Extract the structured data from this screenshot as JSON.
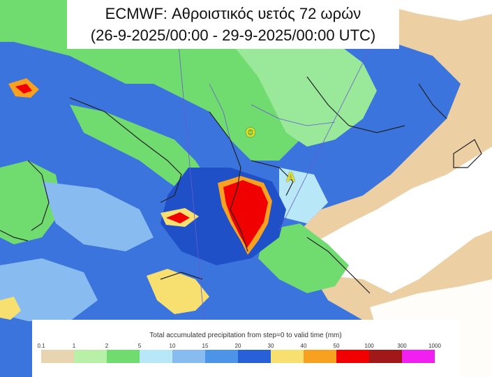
{
  "title": {
    "line1": "ECMWF: Αθροιστικός υετός 72 ωρών",
    "line2": "(26-9-2025/00:00 - 29-9-2025/00:00 UTC)"
  },
  "legend": {
    "title": "Total accumulated precipitation from step=0 to valid time (mm)",
    "ticks": [
      "0.1",
      "1",
      "2",
      "5",
      "10",
      "15",
      "20",
      "30",
      "40",
      "50",
      "100",
      "300",
      "1000"
    ],
    "colors": [
      "#e8d4b0",
      "#b8f0a8",
      "#70dc70",
      "#b8e8f8",
      "#88bcf0",
      "#4c94e8",
      "#2860d8",
      "#f8e070",
      "#f8a020",
      "#f00000",
      "#a01818",
      "#f020f0"
    ]
  },
  "labels": {
    "thessaloniki": "Θ",
    "athens": "Α"
  },
  "colors": {
    "land_dry": "#ecd0a4",
    "sea_dry": "#ffffff",
    "border": "#222222"
  }
}
